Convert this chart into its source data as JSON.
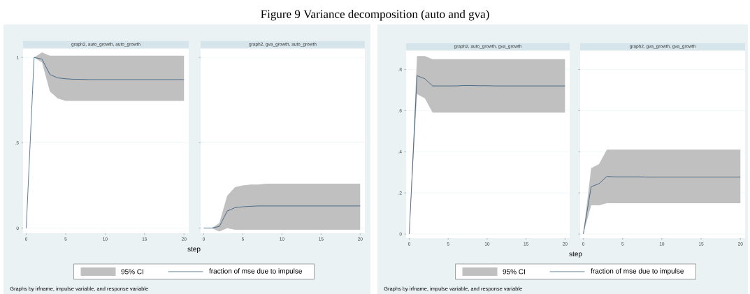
{
  "chart_data": [
    {
      "type": "line",
      "title": "graph2, auto_growth, auto_growth",
      "xlabel": "step",
      "x": [
        0,
        1,
        2,
        3,
        4,
        5,
        6,
        7,
        8,
        9,
        10,
        11,
        12,
        13,
        14,
        15,
        16,
        17,
        18,
        19,
        20
      ],
      "xlim": [
        -0.4,
        20.6
      ],
      "xticks": [
        0,
        5,
        10,
        15,
        20
      ],
      "ylim": [
        -0.03,
        1.05
      ],
      "yticks": [
        0,
        {
          "value": 0.5,
          "label": ".5"
        },
        1
      ],
      "grid": "y",
      "legend": "bottom",
      "annotations": [
        "Figure 9 Variance decomposition (auto and gva)",
        "95% CI",
        "Graphs by irfname, impulse variable, and response variable"
      ],
      "series": [
        {
          "name": "fraction of mse due to impulse",
          "color": "#1a476f",
          "values": [
            0,
            1,
            0.99,
            0.9,
            0.88,
            0.875,
            0.872,
            0.872,
            0.87,
            0.87,
            0.87,
            0.87,
            0.87,
            0.87,
            0.87,
            0.87,
            0.87,
            0.87,
            0.87,
            0.87,
            0.87
          ],
          "lower": [
            0,
            1,
            0.97,
            0.8,
            0.76,
            0.745,
            0.745,
            0.745,
            0.745,
            0.745,
            0.745,
            0.745,
            0.745,
            0.745,
            0.745,
            0.745,
            0.745,
            0.745,
            0.745,
            0.745,
            0.745
          ],
          "upper": [
            0,
            1,
            1.03,
            1.01,
            1.01,
            1.01,
            1.01,
            1.01,
            1.01,
            1.01,
            1.01,
            1.01,
            1.01,
            1.01,
            1.01,
            1.01,
            1.01,
            1.01,
            1.01,
            1.01,
            1.01
          ]
        }
      ]
    },
    {
      "type": "line",
      "title": "graph2, gva_growth, auto_growth",
      "x": [
        0,
        1,
        2,
        3,
        4,
        5,
        6,
        7,
        8,
        9,
        10,
        11,
        12,
        13,
        14,
        15,
        16,
        17,
        18,
        19,
        20
      ],
      "xlim": [
        -0.4,
        20.6
      ],
      "xticks": [
        0,
        5,
        10,
        15,
        20
      ],
      "ylim": [
        -0.03,
        1.05
      ],
      "yticks": [
        {
          "value": 0,
          "label": null
        },
        {
          "value": 0.5,
          "label": null
        },
        {
          "value": 1,
          "label": null
        }
      ],
      "grid": "y",
      "tick_labels": "x",
      "series": [
        {
          "color": "#1a476f",
          "values": [
            0,
            0,
            0.01,
            0.1,
            0.12,
            0.125,
            0.128,
            0.13,
            0.13,
            0.13,
            0.13,
            0.13,
            0.13,
            0.13,
            0.13,
            0.13,
            0.13,
            0.13,
            0.13,
            0.13,
            0.13
          ],
          "lower": [
            0,
            0,
            -0.02,
            0,
            -0.01,
            -0.01,
            -0.01,
            -0.01,
            -0.01,
            -0.01,
            -0.01,
            -0.01,
            -0.01,
            -0.01,
            -0.01,
            -0.01,
            -0.01,
            -0.01,
            -0.01,
            -0.01,
            -0.01
          ],
          "upper": [
            0,
            0,
            0.03,
            0.19,
            0.24,
            0.25,
            0.255,
            0.255,
            0.26,
            0.26,
            0.26,
            0.26,
            0.26,
            0.26,
            0.26,
            0.26,
            0.26,
            0.26,
            0.26,
            0.26,
            0.26
          ]
        }
      ]
    },
    {
      "type": "line",
      "title": "graph2, auto_growth, gva_growth",
      "xlabel": "step",
      "x": [
        0,
        1,
        2,
        3,
        4,
        5,
        6,
        7,
        8,
        9,
        10,
        11,
        12,
        13,
        14,
        15,
        16,
        17,
        18,
        19,
        20
      ],
      "xlim": [
        -0.4,
        20.6
      ],
      "xticks": [
        0,
        5,
        10,
        15,
        20
      ],
      "ylim": [
        -0.02,
        0.89
      ],
      "yticks": [
        {
          "value": 0,
          "label": "0"
        },
        {
          "value": 0.2,
          "label": ".2"
        },
        {
          "value": 0.4,
          "label": ".4"
        },
        {
          "value": 0.6,
          "label": ".6"
        },
        {
          "value": 0.8,
          "label": ".8"
        }
      ],
      "grid": "y",
      "legend": "bottom",
      "annotations": [
        "95% CI",
        "Graphs by irfname, impulse variable, and response variable"
      ],
      "series": [
        {
          "name": "fraction of mse due to impulse",
          "color": "#1a476f",
          "values": [
            0,
            0.77,
            0.755,
            0.72,
            0.72,
            0.72,
            0.72,
            0.722,
            0.722,
            0.721,
            0.721,
            0.72,
            0.72,
            0.72,
            0.72,
            0.72,
            0.72,
            0.72,
            0.72,
            0.72,
            0.72
          ],
          "lower": [
            0,
            0.68,
            0.66,
            0.59,
            0.59,
            0.59,
            0.59,
            0.59,
            0.59,
            0.59,
            0.59,
            0.59,
            0.59,
            0.59,
            0.59,
            0.59,
            0.59,
            0.59,
            0.59,
            0.59,
            0.59
          ],
          "upper": [
            0,
            0.865,
            0.865,
            0.85,
            0.85,
            0.85,
            0.85,
            0.85,
            0.85,
            0.85,
            0.85,
            0.85,
            0.85,
            0.85,
            0.85,
            0.85,
            0.85,
            0.85,
            0.85,
            0.85,
            0.85
          ]
        }
      ]
    },
    {
      "type": "line",
      "title": "graph2, gva_growth, gva_growth",
      "x": [
        0,
        1,
        2,
        3,
        4,
        5,
        6,
        7,
        8,
        9,
        10,
        11,
        12,
        13,
        14,
        15,
        16,
        17,
        18,
        19,
        20
      ],
      "xlim": [
        -0.4,
        20.6
      ],
      "xticks": [
        0,
        5,
        10,
        15,
        20
      ],
      "ylim": [
        -0.02,
        0.89
      ],
      "yticks": [
        {
          "value": 0,
          "label": null
        },
        {
          "value": 0.2,
          "label": null
        },
        {
          "value": 0.4,
          "label": null
        },
        {
          "value": 0.6,
          "label": null
        },
        {
          "value": 0.8,
          "label": null
        }
      ],
      "grid": "y",
      "tick_labels": "x",
      "series": [
        {
          "color": "#1a476f",
          "values": [
            0,
            0.23,
            0.245,
            0.28,
            0.278,
            0.278,
            0.278,
            0.278,
            0.277,
            0.277,
            0.277,
            0.277,
            0.277,
            0.277,
            0.277,
            0.277,
            0.277,
            0.277,
            0.277,
            0.277,
            0.277
          ],
          "lower": [
            0,
            0.14,
            0.14,
            0.15,
            0.15,
            0.15,
            0.15,
            0.15,
            0.15,
            0.15,
            0.15,
            0.15,
            0.15,
            0.15,
            0.15,
            0.15,
            0.15,
            0.15,
            0.15,
            0.15,
            0.15
          ],
          "upper": [
            0,
            0.32,
            0.34,
            0.41,
            0.41,
            0.41,
            0.41,
            0.41,
            0.41,
            0.41,
            0.41,
            0.41,
            0.41,
            0.41,
            0.41,
            0.41,
            0.41,
            0.41,
            0.41,
            0.41,
            0.41
          ]
        }
      ]
    }
  ]
}
